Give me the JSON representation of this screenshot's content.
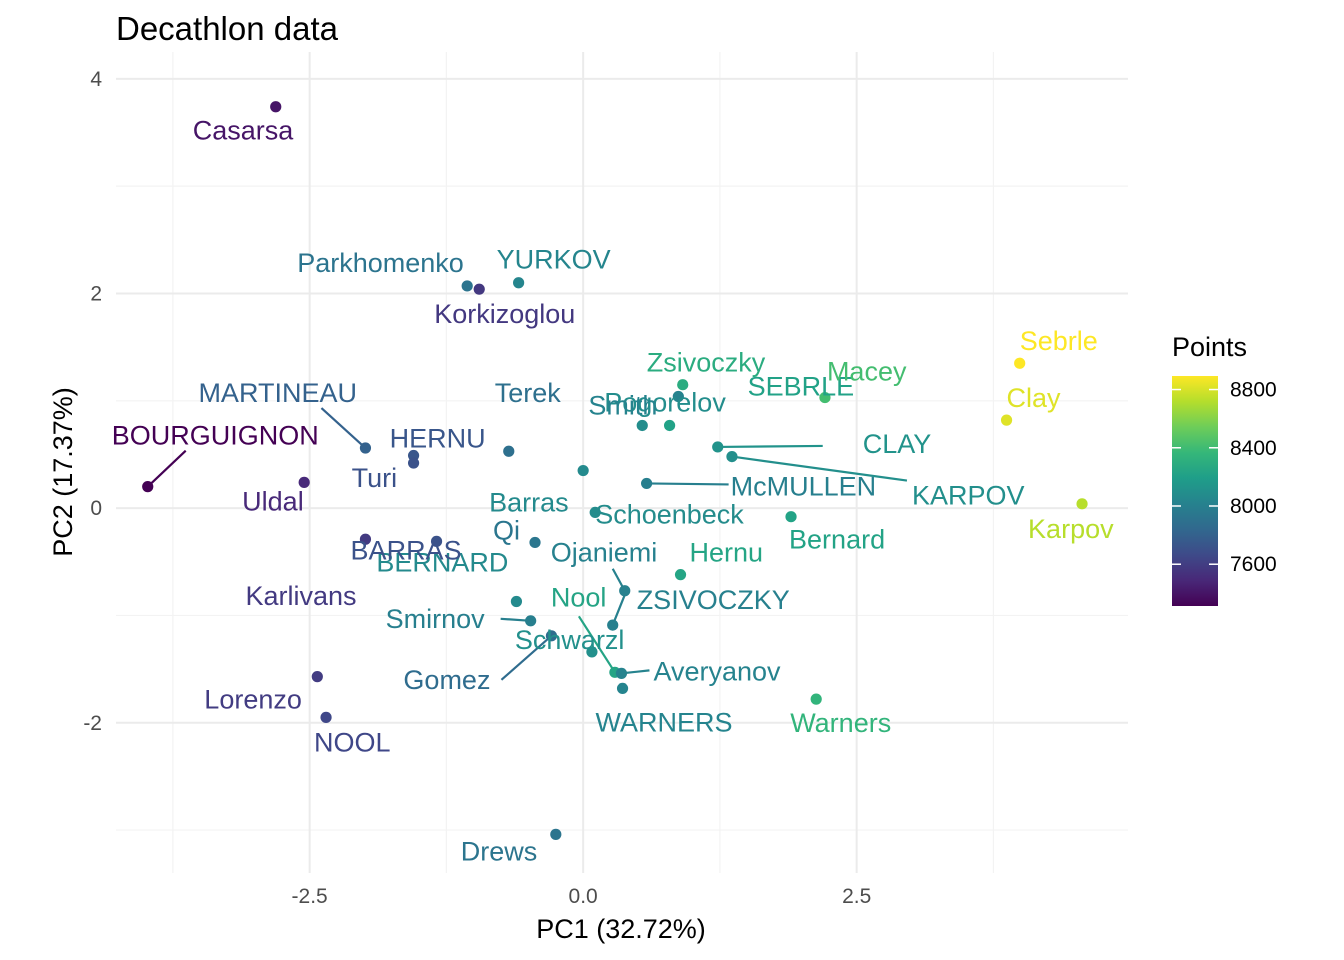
{
  "chart_data": {
    "type": "scatter",
    "title": "Decathlon data",
    "xlabel": "PC1 (32.72%)",
    "ylabel": "PC2 (17.37%)",
    "xlim": [
      -4.27,
      4.98
    ],
    "ylim": [
      -3.4,
      4.25
    ],
    "x_ticks": [
      -2.5,
      0.0,
      2.5
    ],
    "x_tick_labels": [
      "-2.5",
      "0.0",
      "2.5"
    ],
    "y_ticks": [
      -2,
      0,
      2,
      4
    ],
    "y_tick_labels": [
      "-2",
      "0",
      "2",
      "4"
    ],
    "grid": true,
    "legend": {
      "title": "Points",
      "position": "right",
      "min": 7313,
      "max": 8893,
      "ticks": [
        7600,
        8000,
        8400,
        8800
      ],
      "tick_labels": [
        "7600",
        "8000",
        "8400",
        "8800"
      ],
      "colors": [
        "#440154",
        "#482878",
        "#3E4A89",
        "#31688E",
        "#26828E",
        "#1F9E89",
        "#35B779",
        "#6DCD59",
        "#B4DE2C",
        "#FDE725"
      ]
    },
    "points": [
      {
        "label": "SEBRLE",
        "x": 0.79,
        "y": 0.77,
        "score": 8217
      },
      {
        "label": "CLAY",
        "x": 1.23,
        "y": 0.57,
        "score": 8122
      },
      {
        "label": "KARPOV",
        "x": 1.36,
        "y": 0.48,
        "score": 8099
      },
      {
        "label": "BERNARD",
        "x": -0.61,
        "y": -0.87,
        "score": 8067
      },
      {
        "label": "YURKOV",
        "x": -0.59,
        "y": 2.1,
        "score": 8036
      },
      {
        "label": "WARNERS",
        "x": 0.36,
        "y": -1.68,
        "score": 8030
      },
      {
        "label": "ZSIVOCZKY",
        "x": 0.27,
        "y": -1.09,
        "score": 8004
      },
      {
        "label": "McMULLEN",
        "x": 0.58,
        "y": 0.23,
        "score": 7995
      },
      {
        "label": "MARTINEAU",
        "x": -1.99,
        "y": 0.56,
        "score": 7802
      },
      {
        "label": "HERNU",
        "x": -1.55,
        "y": 0.49,
        "score": 7733
      },
      {
        "label": "BARRAS",
        "x": -1.34,
        "y": -0.31,
        "score": 7708
      },
      {
        "label": "NOOL",
        "x": -2.35,
        "y": -1.95,
        "score": 7651
      },
      {
        "label": "BOURGUIGNON",
        "x": -3.98,
        "y": 0.2,
        "score": 7313
      },
      {
        "label": "Sebrle",
        "x": 3.99,
        "y": 1.35,
        "score": 8893
      },
      {
        "label": "Clay",
        "x": 3.87,
        "y": 0.82,
        "score": 8820
      },
      {
        "label": "Karpov",
        "x": 4.56,
        "y": 0.04,
        "score": 8725
      },
      {
        "label": "Macey",
        "x": 2.21,
        "y": 1.03,
        "score": 8414
      },
      {
        "label": "Warners",
        "x": 2.13,
        "y": -1.78,
        "score": 8343
      },
      {
        "label": "Zsivoczky",
        "x": 0.91,
        "y": 1.15,
        "score": 8287
      },
      {
        "label": "Hernu",
        "x": 0.89,
        "y": -0.62,
        "score": 8237
      },
      {
        "label": "Nool",
        "x": 0.29,
        "y": -1.53,
        "score": 8235
      },
      {
        "label": "Bernard",
        "x": 1.9,
        "y": -0.08,
        "score": 8225
      },
      {
        "label": "Schwarzl",
        "x": 0.08,
        "y": -1.34,
        "score": 8102
      },
      {
        "label": "Pogorelov",
        "x": 0.54,
        "y": 0.77,
        "score": 8084
      },
      {
        "label": "Schoenbeck",
        "x": 0.11,
        "y": -0.04,
        "score": 8077
      },
      {
        "label": "Barras",
        "x": 0.0,
        "y": 0.35,
        "score": 8067
      },
      {
        "label": "Smith",
        "x": 0.87,
        "y": 1.04,
        "score": 8023
      },
      {
        "label": "Averyanov",
        "x": 0.35,
        "y": -1.54,
        "score": 8021
      },
      {
        "label": "Ojaniemi",
        "x": 0.38,
        "y": -0.77,
        "score": 8006
      },
      {
        "label": "Smirnov",
        "x": -0.48,
        "y": -1.05,
        "score": 7993
      },
      {
        "label": "Qi",
        "x": -0.44,
        "y": -0.32,
        "score": 7934
      },
      {
        "label": "Drews",
        "x": -0.25,
        "y": -3.04,
        "score": 7926
      },
      {
        "label": "Parkhomenko",
        "x": -1.06,
        "y": 2.07,
        "score": 7918
      },
      {
        "label": "Terek",
        "x": -0.68,
        "y": 0.53,
        "score": 7893
      },
      {
        "label": "Gomez",
        "x": -0.29,
        "y": -1.19,
        "score": 7865
      },
      {
        "label": "Turi",
        "x": -1.55,
        "y": 0.42,
        "score": 7708
      },
      {
        "label": "Lorenzo",
        "x": -2.43,
        "y": -1.57,
        "score": 7592
      },
      {
        "label": "Karlivans",
        "x": -1.99,
        "y": -0.29,
        "score": 7583
      },
      {
        "label": "Korkizoglou",
        "x": -0.95,
        "y": 2.04,
        "score": 7573
      },
      {
        "label": "Uldal",
        "x": -2.55,
        "y": 0.24,
        "score": 7495
      },
      {
        "label": "Casarsa",
        "x": -2.81,
        "y": 3.74,
        "score": 7404
      }
    ]
  }
}
